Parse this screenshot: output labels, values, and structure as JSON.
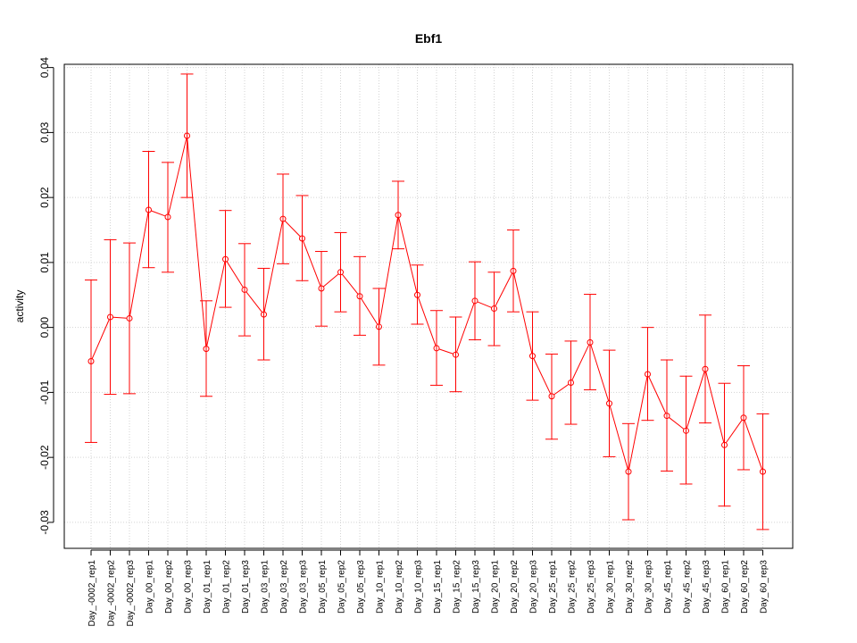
{
  "chart_data": {
    "type": "line",
    "title": "Ebf1",
    "xlabel": "",
    "ylabel": "activity",
    "ylim": [
      -0.034,
      0.0405
    ],
    "yticks": [
      -0.03,
      -0.02,
      -0.01,
      0.0,
      0.01,
      0.02,
      0.03,
      0.04
    ],
    "ytick_labels": [
      "-0.03",
      "-0.02",
      "-0.01",
      "0.00",
      "0.01",
      "0.02",
      "0.03",
      "0.04"
    ],
    "grid": true,
    "color": "#ff0000",
    "categories": [
      "Day_-0002_rep1",
      "Day_-0002_rep2",
      "Day_-0002_rep3",
      "Day_00_rep1",
      "Day_00_rep2",
      "Day_00_rep3",
      "Day_01_rep1",
      "Day_01_rep2",
      "Day_01_rep3",
      "Day_03_rep1",
      "Day_03_rep2",
      "Day_03_rep3",
      "Day_05_rep1",
      "Day_05_rep2",
      "Day_05_rep3",
      "Day_10_rep1",
      "Day_10_rep2",
      "Day_10_rep3",
      "Day_15_rep1",
      "Day_15_rep2",
      "Day_15_rep3",
      "Day_20_rep1",
      "Day_20_rep2",
      "Day_20_rep3",
      "Day_25_rep1",
      "Day_25_rep2",
      "Day_25_rep3",
      "Day_30_rep1",
      "Day_30_rep2",
      "Day_30_rep3",
      "Day_45_rep1",
      "Day_45_rep2",
      "Day_45_rep3",
      "Day_60_rep1",
      "Day_60_rep2",
      "Day_60_rep3"
    ],
    "values": [
      -0.0052,
      0.0016,
      0.0014,
      0.0181,
      0.017,
      0.0295,
      -0.0033,
      0.0105,
      0.0058,
      0.002,
      0.0167,
      0.0137,
      0.006,
      0.0085,
      0.0048,
      0.0001,
      0.0173,
      0.005,
      -0.0032,
      -0.0042,
      0.0041,
      0.0029,
      0.0087,
      -0.0044,
      -0.0106,
      -0.0085,
      -0.0023,
      -0.0117,
      -0.0222,
      -0.0072,
      -0.0136,
      -0.0159,
      -0.0064,
      -0.0181,
      -0.0139,
      -0.0222
    ],
    "upper": [
      0.0073,
      0.0135,
      0.013,
      0.0271,
      0.0254,
      0.039,
      0.0041,
      0.018,
      0.0129,
      0.0091,
      0.0236,
      0.0203,
      0.0117,
      0.0146,
      0.0109,
      0.006,
      0.0225,
      0.0096,
      0.0026,
      0.0016,
      0.0101,
      0.0085,
      0.015,
      0.0024,
      -0.0041,
      -0.0021,
      0.0051,
      -0.0035,
      -0.0148,
      0.0,
      -0.005,
      -0.0075,
      0.0019,
      -0.0086,
      -0.0059,
      -0.0133
    ],
    "lower": [
      -0.0177,
      -0.0103,
      -0.0102,
      0.0092,
      0.0085,
      0.02,
      -0.0106,
      0.0031,
      -0.0013,
      -0.005,
      0.0098,
      0.0072,
      0.0002,
      0.0024,
      -0.0012,
      -0.0058,
      0.0121,
      0.0005,
      -0.0089,
      -0.0099,
      -0.0019,
      -0.0028,
      0.0024,
      -0.0112,
      -0.0172,
      -0.0149,
      -0.0096,
      -0.0199,
      -0.0296,
      -0.0143,
      -0.0221,
      -0.0241,
      -0.0147,
      -0.0275,
      -0.0219,
      -0.0311
    ]
  }
}
